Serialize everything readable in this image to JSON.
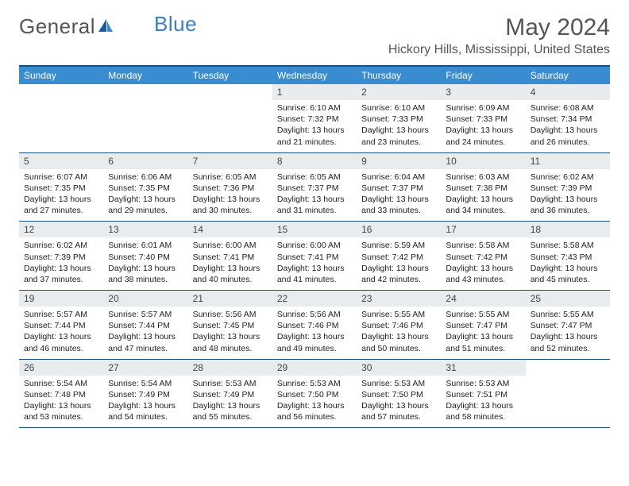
{
  "logo": {
    "part1": "General",
    "part2": "Blue"
  },
  "title": "May 2024",
  "location": "Hickory Hills, Mississippi, United States",
  "dayNames": [
    "Sunday",
    "Monday",
    "Tuesday",
    "Wednesday",
    "Thursday",
    "Friday",
    "Saturday"
  ],
  "colors": {
    "headerBg": "#3a8cd1",
    "borderTop": "#1a4d80",
    "dayNumBg": "#e8ecef",
    "textDark": "#222222",
    "textMuted": "#555555",
    "logoBlue": "#3a7ec2"
  },
  "weeks": [
    [
      {
        "n": "",
        "sr": "",
        "ss": "",
        "dl": ""
      },
      {
        "n": "",
        "sr": "",
        "ss": "",
        "dl": ""
      },
      {
        "n": "",
        "sr": "",
        "ss": "",
        "dl": ""
      },
      {
        "n": "1",
        "sr": "Sunrise: 6:10 AM",
        "ss": "Sunset: 7:32 PM",
        "dl": "Daylight: 13 hours and 21 minutes."
      },
      {
        "n": "2",
        "sr": "Sunrise: 6:10 AM",
        "ss": "Sunset: 7:33 PM",
        "dl": "Daylight: 13 hours and 23 minutes."
      },
      {
        "n": "3",
        "sr": "Sunrise: 6:09 AM",
        "ss": "Sunset: 7:33 PM",
        "dl": "Daylight: 13 hours and 24 minutes."
      },
      {
        "n": "4",
        "sr": "Sunrise: 6:08 AM",
        "ss": "Sunset: 7:34 PM",
        "dl": "Daylight: 13 hours and 26 minutes."
      }
    ],
    [
      {
        "n": "5",
        "sr": "Sunrise: 6:07 AM",
        "ss": "Sunset: 7:35 PM",
        "dl": "Daylight: 13 hours and 27 minutes."
      },
      {
        "n": "6",
        "sr": "Sunrise: 6:06 AM",
        "ss": "Sunset: 7:35 PM",
        "dl": "Daylight: 13 hours and 29 minutes."
      },
      {
        "n": "7",
        "sr": "Sunrise: 6:05 AM",
        "ss": "Sunset: 7:36 PM",
        "dl": "Daylight: 13 hours and 30 minutes."
      },
      {
        "n": "8",
        "sr": "Sunrise: 6:05 AM",
        "ss": "Sunset: 7:37 PM",
        "dl": "Daylight: 13 hours and 31 minutes."
      },
      {
        "n": "9",
        "sr": "Sunrise: 6:04 AM",
        "ss": "Sunset: 7:37 PM",
        "dl": "Daylight: 13 hours and 33 minutes."
      },
      {
        "n": "10",
        "sr": "Sunrise: 6:03 AM",
        "ss": "Sunset: 7:38 PM",
        "dl": "Daylight: 13 hours and 34 minutes."
      },
      {
        "n": "11",
        "sr": "Sunrise: 6:02 AM",
        "ss": "Sunset: 7:39 PM",
        "dl": "Daylight: 13 hours and 36 minutes."
      }
    ],
    [
      {
        "n": "12",
        "sr": "Sunrise: 6:02 AM",
        "ss": "Sunset: 7:39 PM",
        "dl": "Daylight: 13 hours and 37 minutes."
      },
      {
        "n": "13",
        "sr": "Sunrise: 6:01 AM",
        "ss": "Sunset: 7:40 PM",
        "dl": "Daylight: 13 hours and 38 minutes."
      },
      {
        "n": "14",
        "sr": "Sunrise: 6:00 AM",
        "ss": "Sunset: 7:41 PM",
        "dl": "Daylight: 13 hours and 40 minutes."
      },
      {
        "n": "15",
        "sr": "Sunrise: 6:00 AM",
        "ss": "Sunset: 7:41 PM",
        "dl": "Daylight: 13 hours and 41 minutes."
      },
      {
        "n": "16",
        "sr": "Sunrise: 5:59 AM",
        "ss": "Sunset: 7:42 PM",
        "dl": "Daylight: 13 hours and 42 minutes."
      },
      {
        "n": "17",
        "sr": "Sunrise: 5:58 AM",
        "ss": "Sunset: 7:42 PM",
        "dl": "Daylight: 13 hours and 43 minutes."
      },
      {
        "n": "18",
        "sr": "Sunrise: 5:58 AM",
        "ss": "Sunset: 7:43 PM",
        "dl": "Daylight: 13 hours and 45 minutes."
      }
    ],
    [
      {
        "n": "19",
        "sr": "Sunrise: 5:57 AM",
        "ss": "Sunset: 7:44 PM",
        "dl": "Daylight: 13 hours and 46 minutes."
      },
      {
        "n": "20",
        "sr": "Sunrise: 5:57 AM",
        "ss": "Sunset: 7:44 PM",
        "dl": "Daylight: 13 hours and 47 minutes."
      },
      {
        "n": "21",
        "sr": "Sunrise: 5:56 AM",
        "ss": "Sunset: 7:45 PM",
        "dl": "Daylight: 13 hours and 48 minutes."
      },
      {
        "n": "22",
        "sr": "Sunrise: 5:56 AM",
        "ss": "Sunset: 7:46 PM",
        "dl": "Daylight: 13 hours and 49 minutes."
      },
      {
        "n": "23",
        "sr": "Sunrise: 5:55 AM",
        "ss": "Sunset: 7:46 PM",
        "dl": "Daylight: 13 hours and 50 minutes."
      },
      {
        "n": "24",
        "sr": "Sunrise: 5:55 AM",
        "ss": "Sunset: 7:47 PM",
        "dl": "Daylight: 13 hours and 51 minutes."
      },
      {
        "n": "25",
        "sr": "Sunrise: 5:55 AM",
        "ss": "Sunset: 7:47 PM",
        "dl": "Daylight: 13 hours and 52 minutes."
      }
    ],
    [
      {
        "n": "26",
        "sr": "Sunrise: 5:54 AM",
        "ss": "Sunset: 7:48 PM",
        "dl": "Daylight: 13 hours and 53 minutes."
      },
      {
        "n": "27",
        "sr": "Sunrise: 5:54 AM",
        "ss": "Sunset: 7:49 PM",
        "dl": "Daylight: 13 hours and 54 minutes."
      },
      {
        "n": "28",
        "sr": "Sunrise: 5:53 AM",
        "ss": "Sunset: 7:49 PM",
        "dl": "Daylight: 13 hours and 55 minutes."
      },
      {
        "n": "29",
        "sr": "Sunrise: 5:53 AM",
        "ss": "Sunset: 7:50 PM",
        "dl": "Daylight: 13 hours and 56 minutes."
      },
      {
        "n": "30",
        "sr": "Sunrise: 5:53 AM",
        "ss": "Sunset: 7:50 PM",
        "dl": "Daylight: 13 hours and 57 minutes."
      },
      {
        "n": "31",
        "sr": "Sunrise: 5:53 AM",
        "ss": "Sunset: 7:51 PM",
        "dl": "Daylight: 13 hours and 58 minutes."
      },
      {
        "n": "",
        "sr": "",
        "ss": "",
        "dl": ""
      }
    ]
  ]
}
